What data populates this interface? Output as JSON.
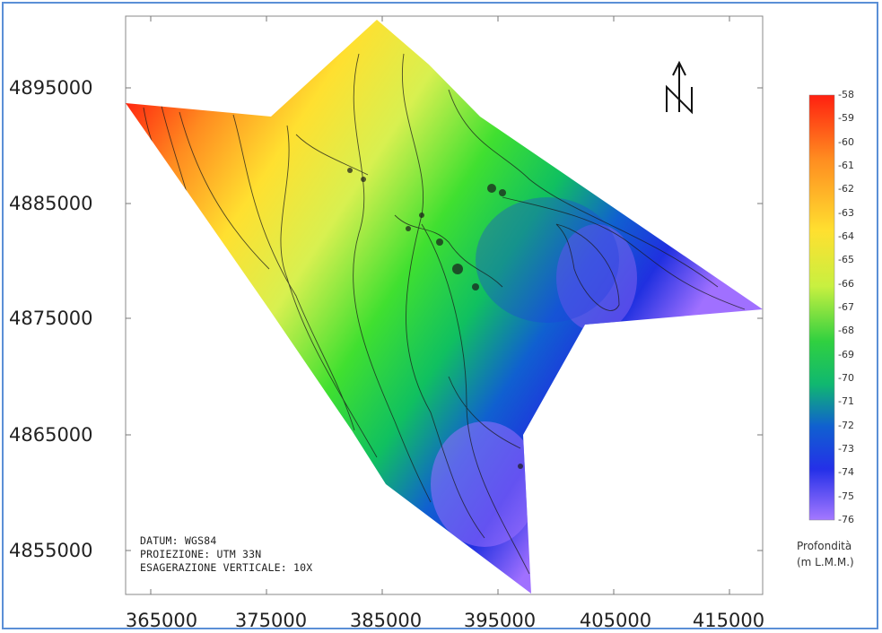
{
  "map": {
    "x_ticks": [
      "365000",
      "375000",
      "385000",
      "395000",
      "405000",
      "415000"
    ],
    "y_ticks": [
      "4895000",
      "4885000",
      "4875000",
      "4865000",
      "4855000"
    ],
    "north_arrow": "N",
    "info_lines": [
      "DATUM: WGS84",
      "PROIEZIONE: UTM 33N",
      "ESAGERAZIONE VERTICALE: 10X"
    ],
    "legend": {
      "title_line1": "Profondità",
      "title_line2": "(m L.M.M.)",
      "labels": [
        "-58",
        "-59",
        "-60",
        "-61",
        "-62",
        "-63",
        "-64",
        "-65",
        "-66",
        "-67",
        "-68",
        "-69",
        "-70",
        "-71",
        "-72",
        "-73",
        "-74",
        "-75",
        "-76"
      ],
      "colors": [
        "#ff2a10",
        "#ff8c20",
        "#ffe030",
        "#d8f050",
        "#40e030",
        "#10c060",
        "#1060d0",
        "#2030e0",
        "#a070ff"
      ]
    }
  }
}
